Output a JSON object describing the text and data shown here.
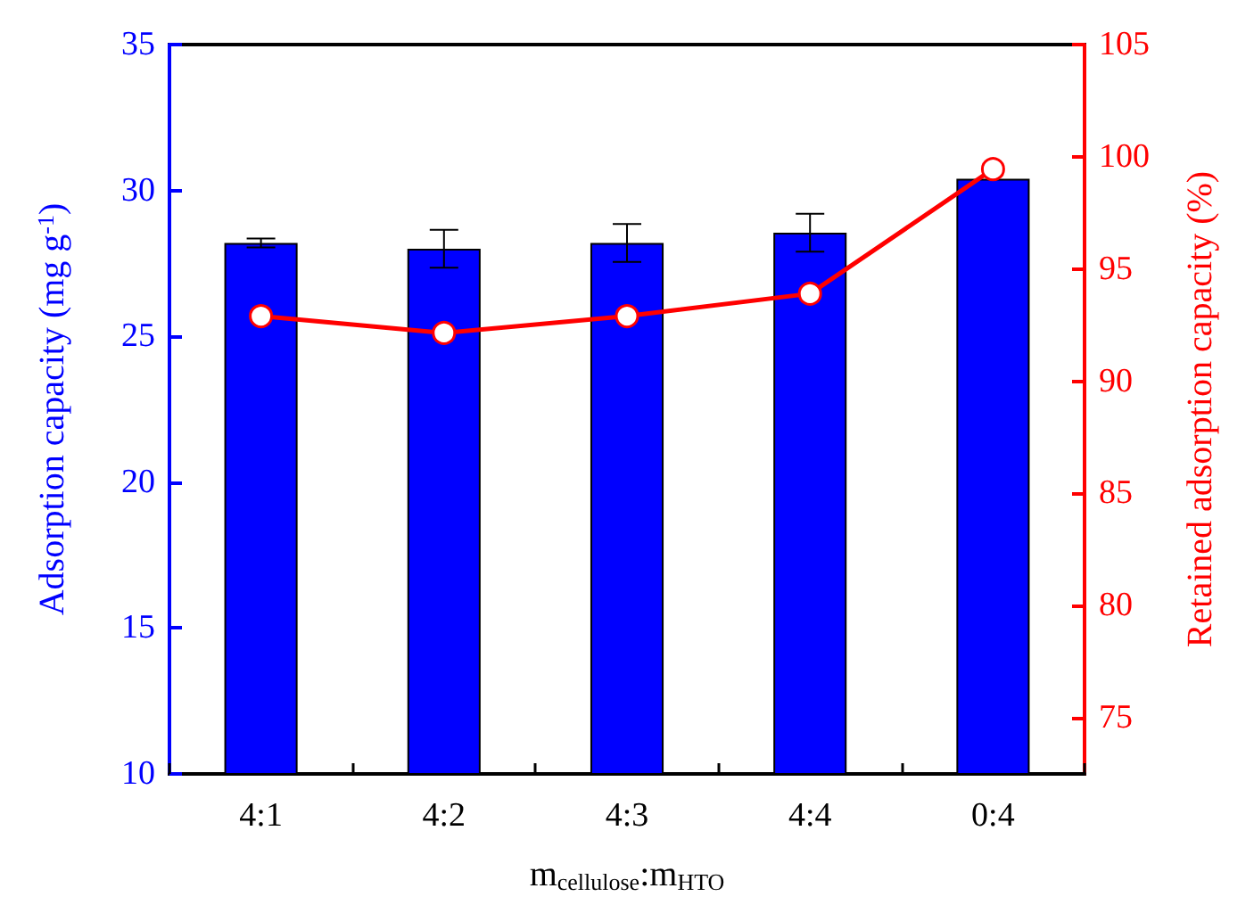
{
  "chart_data": {
    "type": "bar",
    "xlabel": "m$_{cellulose}$:m$_{HTO}$",
    "ylabel": "Adsorption capacity (mg g$^{-1}$)",
    "y2label": "Retained adsorption capacity (%)",
    "categories": [
      "4:1",
      "4:2",
      "4:3",
      "4:4",
      "0:4"
    ],
    "series": [
      {
        "color": "#0000ff",
        "values": [
          28.2,
          28.0,
          28.2,
          28.55,
          30.4
        ],
        "errors": [
          0.15,
          0.65,
          0.65,
          0.65,
          null
        ]
      },
      {
        "type": "line",
        "axis": "y2",
        "color": "#ff0000",
        "values": [
          92.9,
          92.15,
          92.9,
          93.9,
          99.45
        ]
      }
    ],
    "marker": "circle",
    "ylim": [
      10,
      35
    ],
    "yticks": [
      10,
      15,
      20,
      25,
      30,
      35
    ],
    "y2lim": [
      72.5,
      105
    ],
    "y2ticks": [
      75,
      80,
      85,
      90,
      95,
      100,
      105
    ]
  }
}
